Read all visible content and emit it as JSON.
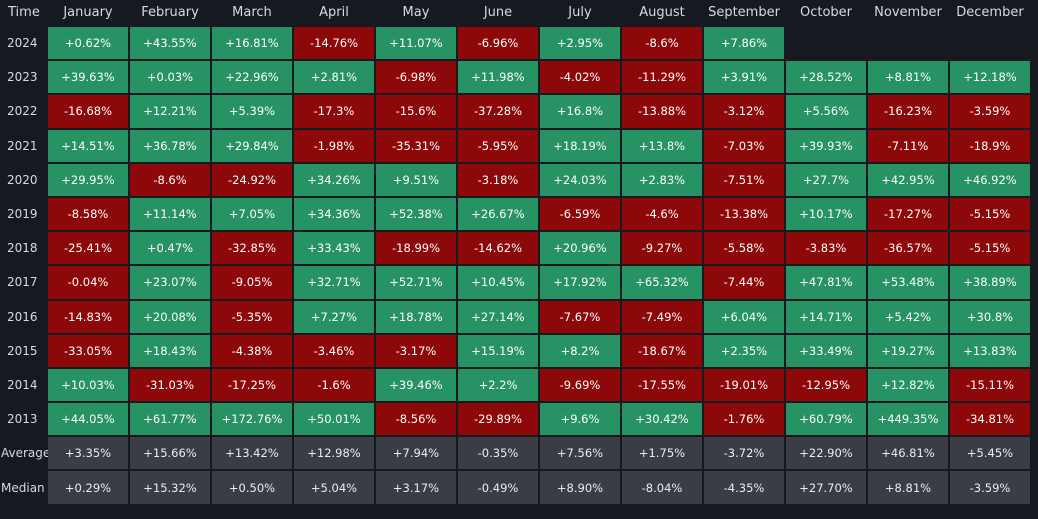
{
  "header": {
    "time_label": "Time",
    "months": [
      "January",
      "February",
      "March",
      "April",
      "May",
      "June",
      "July",
      "August",
      "September",
      "October",
      "November",
      "December"
    ]
  },
  "colors": {
    "positive": "#279264",
    "negative": "#8d0909",
    "stat_bg": "#3a3e44",
    "background": "#16191f"
  },
  "rows": [
    {
      "year": "2024",
      "values": [
        "+0.62%",
        "+43.55%",
        "+16.81%",
        "-14.76%",
        "+11.07%",
        "-6.96%",
        "+2.95%",
        "-8.6%",
        "+7.86%",
        "",
        "",
        ""
      ]
    },
    {
      "year": "2023",
      "values": [
        "+39.63%",
        "+0.03%",
        "+22.96%",
        "+2.81%",
        "-6.98%",
        "+11.98%",
        "-4.02%",
        "-11.29%",
        "+3.91%",
        "+28.52%",
        "+8.81%",
        "+12.18%"
      ]
    },
    {
      "year": "2022",
      "values": [
        "-16.68%",
        "+12.21%",
        "+5.39%",
        "-17.3%",
        "-15.6%",
        "-37.28%",
        "+16.8%",
        "-13.88%",
        "-3.12%",
        "+5.56%",
        "-16.23%",
        "-3.59%"
      ]
    },
    {
      "year": "2021",
      "values": [
        "+14.51%",
        "+36.78%",
        "+29.84%",
        "-1.98%",
        "-35.31%",
        "-5.95%",
        "+18.19%",
        "+13.8%",
        "-7.03%",
        "+39.93%",
        "-7.11%",
        "-18.9%"
      ]
    },
    {
      "year": "2020",
      "values": [
        "+29.95%",
        "-8.6%",
        "-24.92%",
        "+34.26%",
        "+9.51%",
        "-3.18%",
        "+24.03%",
        "+2.83%",
        "-7.51%",
        "+27.7%",
        "+42.95%",
        "+46.92%"
      ]
    },
    {
      "year": "2019",
      "values": [
        "-8.58%",
        "+11.14%",
        "+7.05%",
        "+34.36%",
        "+52.38%",
        "+26.67%",
        "-6.59%",
        "-4.6%",
        "-13.38%",
        "+10.17%",
        "-17.27%",
        "-5.15%"
      ]
    },
    {
      "year": "2018",
      "values": [
        "-25.41%",
        "+0.47%",
        "-32.85%",
        "+33.43%",
        "-18.99%",
        "-14.62%",
        "+20.96%",
        "-9.27%",
        "-5.58%",
        "-3.83%",
        "-36.57%",
        "-5.15%"
      ]
    },
    {
      "year": "2017",
      "values": [
        "-0.04%",
        "+23.07%",
        "-9.05%",
        "+32.71%",
        "+52.71%",
        "+10.45%",
        "+17.92%",
        "+65.32%",
        "-7.44%",
        "+47.81%",
        "+53.48%",
        "+38.89%"
      ]
    },
    {
      "year": "2016",
      "values": [
        "-14.83%",
        "+20.08%",
        "-5.35%",
        "+7.27%",
        "+18.78%",
        "+27.14%",
        "-7.67%",
        "-7.49%",
        "+6.04%",
        "+14.71%",
        "+5.42%",
        "+30.8%"
      ]
    },
    {
      "year": "2015",
      "values": [
        "-33.05%",
        "+18.43%",
        "-4.38%",
        "-3.46%",
        "-3.17%",
        "+15.19%",
        "+8.2%",
        "-18.67%",
        "+2.35%",
        "+33.49%",
        "+19.27%",
        "+13.83%"
      ]
    },
    {
      "year": "2014",
      "values": [
        "+10.03%",
        "-31.03%",
        "-17.25%",
        "-1.6%",
        "+39.46%",
        "+2.2%",
        "-9.69%",
        "-17.55%",
        "-19.01%",
        "-12.95%",
        "+12.82%",
        "-15.11%"
      ]
    },
    {
      "year": "2013",
      "values": [
        "+44.05%",
        "+61.77%",
        "+172.76%",
        "+50.01%",
        "-8.56%",
        "-29.89%",
        "+9.6%",
        "+30.42%",
        "-1.76%",
        "+60.79%",
        "+449.35%",
        "-34.81%"
      ]
    }
  ],
  "stats": [
    {
      "label": "Average",
      "values": [
        "+3.35%",
        "+15.66%",
        "+13.42%",
        "+12.98%",
        "+7.94%",
        "-0.35%",
        "+7.56%",
        "+1.75%",
        "-3.72%",
        "+22.90%",
        "+46.81%",
        "+5.45%"
      ]
    },
    {
      "label": "Median",
      "values": [
        "+0.29%",
        "+15.32%",
        "+0.50%",
        "+5.04%",
        "+3.17%",
        "-0.49%",
        "+8.90%",
        "-8.04%",
        "-4.35%",
        "+27.70%",
        "+8.81%",
        "-3.59%"
      ]
    }
  ]
}
